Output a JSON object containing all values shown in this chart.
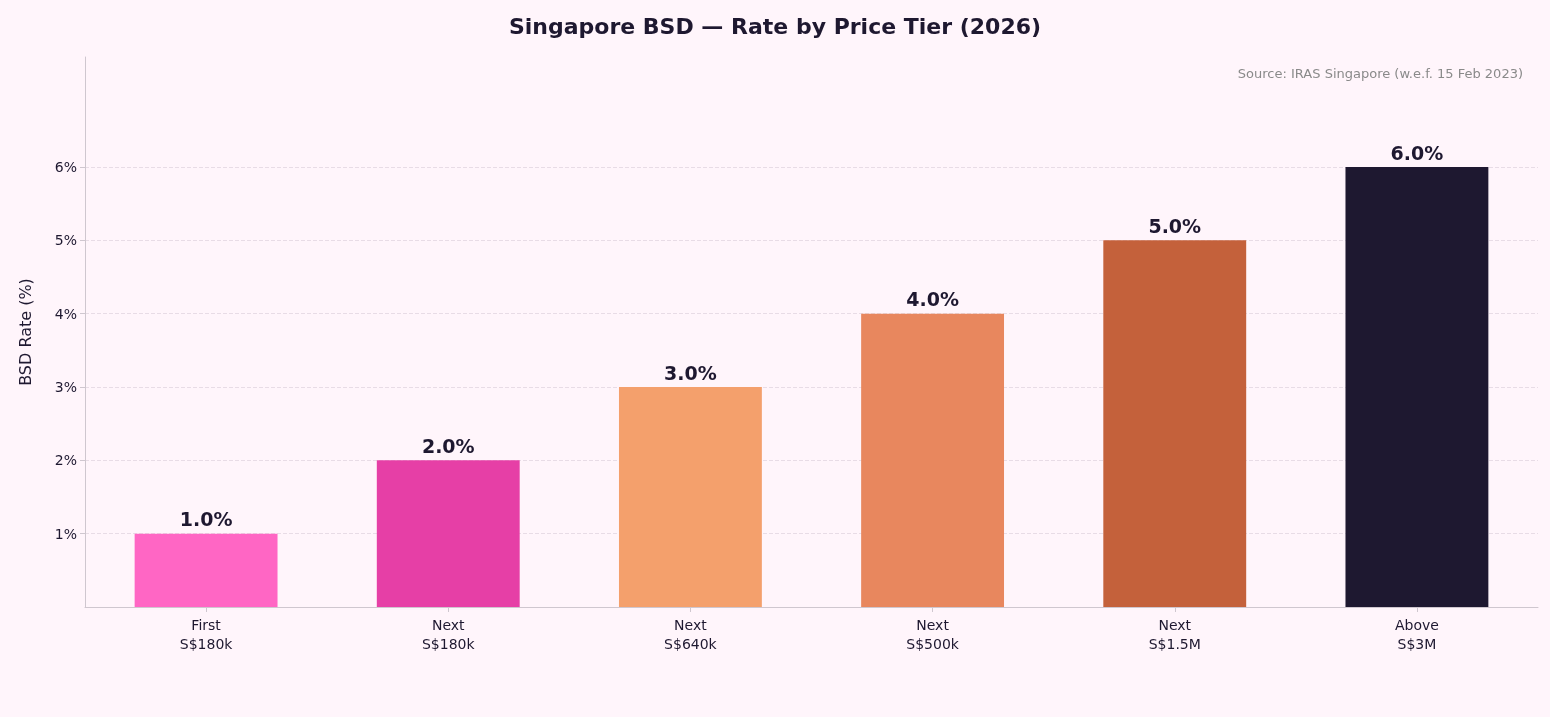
{
  "chart_data": {
    "type": "bar",
    "title": "Singapore BSD — Rate by Price Tier (2026)",
    "ylabel": "BSD Rate (%)",
    "categories": [
      "First\nS$180k",
      "Next\nS$180k",
      "Next\nS$640k",
      "Next\nS$500k",
      "Next\nS$1.5M",
      "Above\nS$3M"
    ],
    "values": [
      1.0,
      2.0,
      3.0,
      4.0,
      5.0,
      6.0
    ],
    "colors": [
      "#ff66c4",
      "#e63fa6",
      "#f4a06c",
      "#e8875e",
      "#c4613b",
      "#1e1830"
    ],
    "value_labels": [
      "1.0%",
      "2.0%",
      "3.0%",
      "4.0%",
      "5.0%",
      "6.0%"
    ],
    "ylim": [
      0,
      7.5
    ],
    "yticks": [
      {
        "value": 1,
        "label": "1%"
      },
      {
        "value": 2,
        "label": "2%"
      },
      {
        "value": 3,
        "label": "3%"
      },
      {
        "value": 4,
        "label": "4%"
      },
      {
        "value": 5,
        "label": "5%"
      },
      {
        "value": 6,
        "label": "6%"
      }
    ],
    "grid": "y",
    "annotations": [
      "Source: IRAS Singapore (w.e.f. 15 Feb 2023)"
    ]
  }
}
